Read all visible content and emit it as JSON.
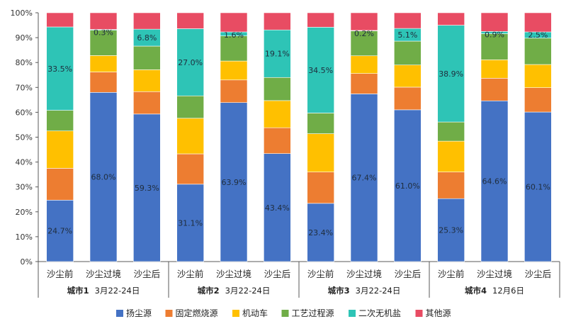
{
  "chart_data": {
    "type": "bar",
    "stacked": true,
    "ylim": [
      0,
      100
    ],
    "y_ticks": [
      "0%",
      "10%",
      "20%",
      "30%",
      "40%",
      "50%",
      "60%",
      "70%",
      "80%",
      "90%",
      "100%"
    ],
    "grid": false,
    "legend_position": "bottom",
    "groups": [
      {
        "city": "城市1",
        "date": "3月22-24日",
        "bars": [
          {
            "category": "沙尘前",
            "values": [
              24.7,
              12.8,
              15.0,
              8.3,
              33.5,
              5.7
            ],
            "labels": [
              "24.7%",
              "",
              "",
              "",
              "33.5%",
              ""
            ]
          },
          {
            "category": "沙尘过境",
            "values": [
              68.0,
              8.2,
              6.6,
              10.2,
              0.3,
              6.7
            ],
            "labels": [
              "68.0%",
              "",
              "",
              "",
              "0.3%",
              ""
            ]
          },
          {
            "category": "沙尘后",
            "values": [
              59.3,
              9.0,
              8.8,
              9.5,
              6.8,
              6.6
            ],
            "labels": [
              "59.3%",
              "",
              "",
              "",
              "6.8%",
              ""
            ]
          }
        ]
      },
      {
        "city": "城市2",
        "date": "3月22-24日",
        "bars": [
          {
            "category": "沙尘前",
            "values": [
              31.1,
              12.2,
              14.3,
              9.0,
              27.0,
              6.4
            ],
            "labels": [
              "31.1%",
              "",
              "",
              "",
              "27.0%",
              ""
            ]
          },
          {
            "category": "沙尘过境",
            "values": [
              63.9,
              9.1,
              7.6,
              10.1,
              1.6,
              7.7
            ],
            "labels": [
              "63.9%",
              "",
              "",
              "",
              "1.6%",
              ""
            ]
          },
          {
            "category": "沙尘后",
            "values": [
              43.4,
              10.4,
              10.9,
              9.3,
              19.1,
              6.9
            ],
            "labels": [
              "43.4%",
              "",
              "",
              "",
              "19.1%",
              ""
            ]
          }
        ]
      },
      {
        "city": "城市3",
        "date": "3月22-24日",
        "bars": [
          {
            "category": "沙尘前",
            "values": [
              23.4,
              12.6,
              15.4,
              8.3,
              34.5,
              5.8
            ],
            "labels": [
              "23.4%",
              "",
              "",
              "",
              "34.5%",
              ""
            ]
          },
          {
            "category": "沙尘过境",
            "values": [
              67.4,
              8.2,
              7.1,
              10.0,
              0.2,
              7.1
            ],
            "labels": [
              "67.4%",
              "",
              "",
              "",
              "0.2%",
              ""
            ]
          },
          {
            "category": "沙尘后",
            "values": [
              61.0,
              9.1,
              8.9,
              9.6,
              5.1,
              6.3
            ],
            "labels": [
              "61.0%",
              "",
              "",
              "",
              "5.1%",
              ""
            ]
          }
        ]
      },
      {
        "city": "城市4",
        "date": "12月6日",
        "bars": [
          {
            "category": "沙尘前",
            "values": [
              25.3,
              10.7,
              12.4,
              7.7,
              38.9,
              5.0
            ],
            "labels": [
              "25.3%",
              "",
              "",
              "",
              "38.9%",
              ""
            ]
          },
          {
            "category": "沙尘过境",
            "values": [
              64.6,
              9.1,
              7.4,
              10.5,
              0.9,
              7.5
            ],
            "labels": [
              "64.6%",
              "",
              "",
              "",
              "0.9%",
              ""
            ]
          },
          {
            "category": "沙尘后",
            "values": [
              60.1,
              9.8,
              9.3,
              10.6,
              2.5,
              7.7
            ],
            "labels": [
              "60.1%",
              "",
              "",
              "",
              "2.5%",
              ""
            ]
          }
        ]
      }
    ],
    "series": [
      {
        "name": "扬尘源",
        "color": "#4472c4"
      },
      {
        "name": "固定燃烧源",
        "color": "#ed7d31"
      },
      {
        "name": "机动车",
        "color": "#ffc000"
      },
      {
        "name": "工艺过程源",
        "color": "#70ad47"
      },
      {
        "name": "二次无机盐",
        "color": "#2ec4b6"
      },
      {
        "name": "其他源",
        "color": "#e84c63"
      }
    ]
  }
}
